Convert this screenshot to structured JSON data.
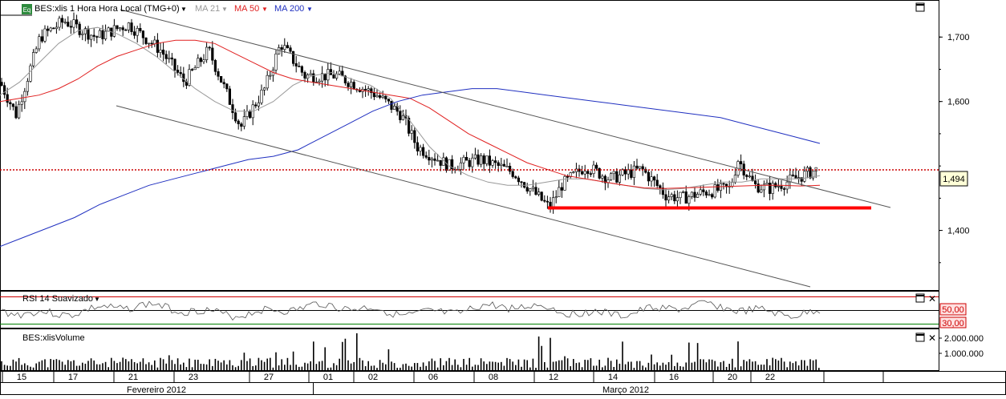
{
  "price_panel": {
    "badge": "Eq",
    "symbol_label": "BES:xlis 1 Hora Hora Local (TMG+0)",
    "ma_labels": [
      {
        "text": "MA 21",
        "color": "#999999"
      },
      {
        "text": "MA 50",
        "color": "#e02020"
      },
      {
        "text": "MA 200",
        "color": "#2030c0"
      }
    ],
    "last_price_label": "1,494"
  },
  "rsi_panel": {
    "label": "RSI 14 Suavizado",
    "level_labels": [
      "50,00",
      "30,00"
    ]
  },
  "volume_panel": {
    "label": "BES:xlisVolume",
    "tick_labels": [
      "2.000.000",
      "1.000.000"
    ]
  },
  "date_axis": {
    "day_labels": [
      "15",
      "17",
      "21",
      "23",
      "27",
      "01",
      "02",
      "06",
      "08",
      "12",
      "14",
      "16",
      "20",
      "22"
    ],
    "month_labels": [
      "Fevereiro 2012",
      "Março 2012"
    ]
  },
  "colors": {
    "ma21": "#999999",
    "ma50": "#e02020",
    "ma200": "#2030c0",
    "support": "#ff0000",
    "rsi_upper": "#cc0000",
    "rsi_lower": "#008000"
  },
  "chart_data": [
    {
      "type": "candlestick",
      "y_ticks": [
        "1,700",
        "1,600",
        "1,400"
      ],
      "ylim": [
        1.31,
        1.755
      ],
      "last_value": 1.494,
      "support_level": 1.435,
      "series": [
        {
          "name": "MA 21",
          "values": [
            1.61,
            1.63,
            1.66,
            1.69,
            1.71,
            1.715,
            1.705,
            1.69,
            1.67,
            1.645,
            1.62,
            1.6,
            1.585,
            1.585,
            1.6,
            1.625,
            1.64,
            1.645,
            1.635,
            1.625,
            1.605,
            1.57,
            1.53,
            1.5,
            1.485,
            1.475,
            1.47,
            1.47,
            1.475,
            1.48,
            1.48,
            1.475,
            1.47,
            1.465,
            1.463,
            1.465,
            1.47,
            1.475,
            1.475,
            1.48,
            1.48,
            1.48,
            1.485
          ]
        },
        {
          "name": "MA 50",
          "values": [
            1.6,
            1.605,
            1.61,
            1.62,
            1.635,
            1.655,
            1.67,
            1.68,
            1.69,
            1.695,
            1.695,
            1.69,
            1.675,
            1.66,
            1.645,
            1.635,
            1.63,
            1.625,
            1.62,
            1.615,
            1.61,
            1.605,
            1.59,
            1.57,
            1.55,
            1.535,
            1.52,
            1.505,
            1.495,
            1.485,
            1.48,
            1.475,
            1.47,
            1.466,
            1.465,
            1.466,
            1.467,
            1.468,
            1.469,
            1.47,
            1.47,
            1.469,
            1.47
          ]
        },
        {
          "name": "MA 200",
          "values": [
            1.375,
            1.39,
            1.405,
            1.42,
            1.44,
            1.455,
            1.47,
            1.48,
            1.49,
            1.5,
            1.51,
            1.515,
            1.525,
            1.545,
            1.565,
            1.585,
            1.6,
            1.61,
            1.615,
            1.62,
            1.62,
            1.615,
            1.61,
            1.605,
            1.6,
            1.595,
            1.59,
            1.585,
            1.58,
            1.575,
            1.565,
            1.555,
            1.545,
            1.535
          ]
        }
      ]
    },
    {
      "type": "line",
      "title": "RSI 14 Suavizado",
      "levels": [
        50,
        30
      ]
    },
    {
      "type": "bar",
      "title": "BES:xlisVolume",
      "ylim": [
        0,
        2600000
      ]
    }
  ]
}
